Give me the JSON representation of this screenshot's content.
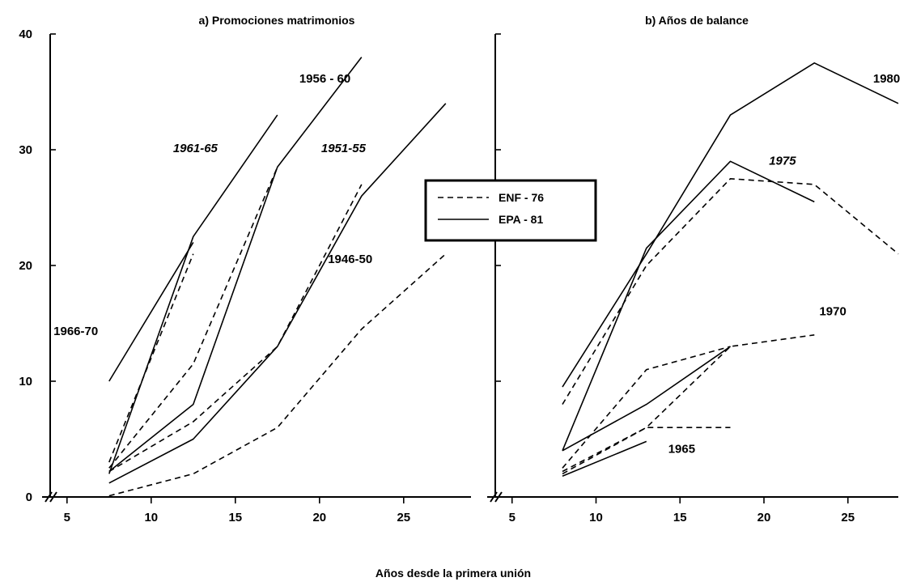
{
  "chart_data": [
    {
      "type": "line",
      "title": "a)  Promociones matrimonios",
      "xlim": [
        4,
        29
      ],
      "ylim": [
        0,
        40
      ],
      "xticks": [
        5,
        10,
        15,
        20,
        25
      ],
      "yticks": [
        0,
        10,
        20,
        30,
        40
      ],
      "legend": {
        "placement": "right",
        "entries": [
          {
            "label": "ENF - 76",
            "style": "dashed"
          },
          {
            "label": "EPA - 81",
            "style": "solid"
          }
        ]
      },
      "series": [
        {
          "name": "1966-70",
          "source": "EPA - 81",
          "x": [
            7.5,
            12.5
          ],
          "y": [
            10,
            22
          ]
        },
        {
          "name": "1966-70",
          "source": "ENF - 76",
          "x": [
            7.5,
            12.5
          ],
          "y": [
            3,
            21
          ]
        },
        {
          "name": "1961-65",
          "source": "EPA - 81",
          "x": [
            7.5,
            12.5,
            17.5
          ],
          "y": [
            2,
            22.5,
            33
          ]
        },
        {
          "name": "1961-65",
          "source": "ENF - 76",
          "x": [
            7.5,
            12.5,
            17.5
          ],
          "y": [
            2.5,
            11.5,
            28.5
          ]
        },
        {
          "name": "1956 - 60",
          "source": "EPA - 81",
          "x": [
            7.5,
            12.5,
            17.5,
            22.5
          ],
          "y": [
            2.2,
            8,
            28.5,
            38
          ]
        },
        {
          "name": "1956 - 60",
          "source": "ENF - 76",
          "x": [
            7.5,
            12.5,
            17.5,
            22.5
          ],
          "y": [
            2.2,
            6.5,
            13,
            27
          ]
        },
        {
          "name": "1951-55",
          "source": "EPA - 81",
          "x": [
            7.5,
            12.5,
            17.5,
            22.5,
            27.5
          ],
          "y": [
            1.2,
            5,
            13,
            26,
            34
          ]
        },
        {
          "name": "1946-50",
          "source": "ENF - 76",
          "x": [
            7.5,
            12.5,
            17.5,
            22.5,
            27.5
          ],
          "y": [
            0.1,
            2,
            6,
            14.5,
            21
          ]
        }
      ],
      "annotations": [
        {
          "text": "1966-70",
          "italic": false,
          "x": 4.2,
          "y": 14
        },
        {
          "text": "1961-65",
          "italic": true,
          "x": 11.3,
          "y": 29.8
        },
        {
          "text": "1956 - 60",
          "italic": false,
          "x": 18.8,
          "y": 35.8
        },
        {
          "text": "1951-55",
          "italic": true,
          "x": 20.1,
          "y": 29.8
        },
        {
          "text": "1946-50",
          "italic": false,
          "x": 20.5,
          "y": 20.2
        }
      ]
    },
    {
      "type": "line",
      "title": "b)  Años de balance",
      "xlim": [
        4,
        28
      ],
      "ylim": [
        0,
        40
      ],
      "xticks": [
        5,
        10,
        15,
        20,
        25
      ],
      "yticks": [
        0,
        10,
        20,
        30,
        40
      ],
      "series": [
        {
          "name": "1980",
          "source": "EPA - 81",
          "x": [
            8,
            13,
            18,
            23,
            28
          ],
          "y": [
            9.5,
            21,
            33,
            37.5,
            34
          ]
        },
        {
          "name": "1980",
          "source": "ENF - 76",
          "x": [
            8,
            13,
            18,
            23,
            28
          ],
          "y": [
            8,
            20,
            27.5,
            27,
            21
          ]
        },
        {
          "name": "1975",
          "source": "EPA - 81",
          "x": [
            8,
            13,
            18,
            23
          ],
          "y": [
            4,
            21.5,
            29,
            25.5
          ]
        },
        {
          "name": "1975",
          "source": "ENF - 76",
          "x": [
            8,
            13,
            18
          ],
          "y": [
            2.5,
            11,
            13
          ]
        },
        {
          "name": "1970",
          "source": "EPA - 81",
          "x": [
            8,
            13,
            18
          ],
          "y": [
            4,
            8,
            13
          ]
        },
        {
          "name": "1970",
          "source": "ENF - 76",
          "x": [
            8,
            13,
            18,
            23
          ],
          "y": [
            2.2,
            6,
            13,
            14
          ]
        },
        {
          "name": "1965",
          "source": "ENF - 76",
          "x": [
            8,
            13,
            18
          ],
          "y": [
            2,
            6,
            6
          ]
        },
        {
          "name": "1965",
          "source": "EPA - 81",
          "x": [
            8,
            13
          ],
          "y": [
            1.8,
            4.8
          ]
        }
      ],
      "annotations": [
        {
          "text": "1980",
          "italic": false,
          "x": 26.5,
          "y": 35.8
        },
        {
          "text": "1975",
          "italic": true,
          "x": 20.3,
          "y": 28.7
        },
        {
          "text": "1970",
          "italic": false,
          "x": 23.3,
          "y": 15.7
        },
        {
          "text": "1965",
          "italic": false,
          "x": 14.3,
          "y": 3.8
        }
      ]
    }
  ],
  "xlabel": "Años desde la primera unión",
  "ylabel": ""
}
